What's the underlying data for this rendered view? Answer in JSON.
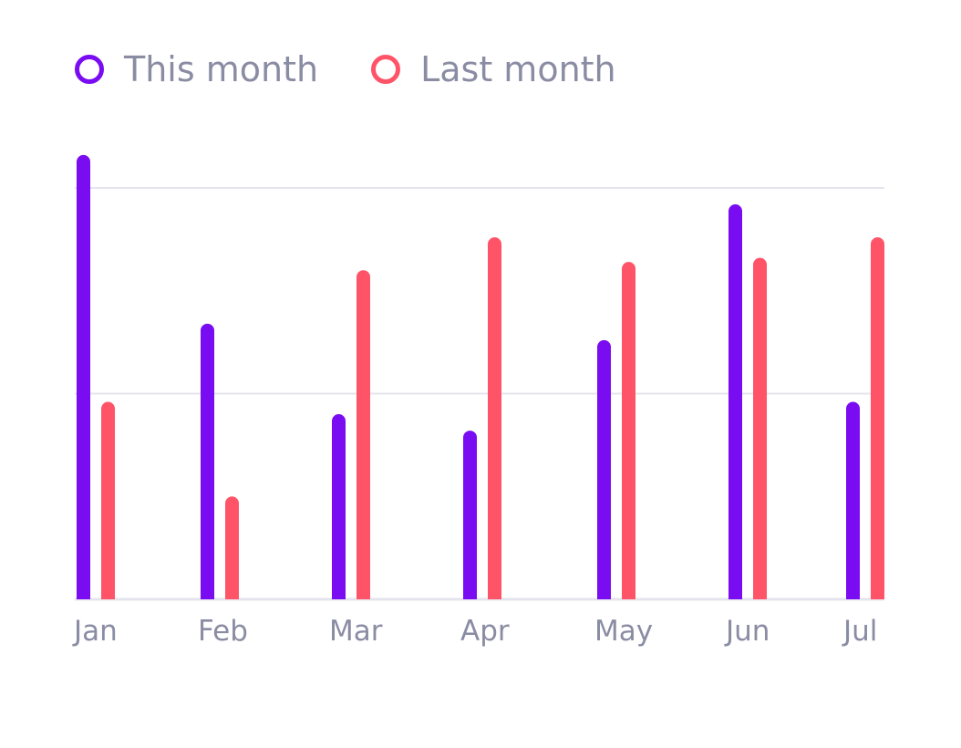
{
  "legend": [
    {
      "label": "This month",
      "color": "#7a0cf2"
    },
    {
      "label": "Last month",
      "color": "#ff5468"
    }
  ],
  "chart_data": {
    "type": "bar",
    "categories": [
      "Jan",
      "Feb",
      "Mar",
      "Apr",
      "May",
      "Jun",
      "Jul"
    ],
    "series": [
      {
        "name": "This month",
        "color": "#7a0cf2",
        "values": [
          108,
          67,
          45,
          41,
          63,
          96,
          48
        ]
      },
      {
        "name": "Last month",
        "color": "#ff5468",
        "values": [
          48,
          25,
          80,
          88,
          82,
          83,
          88
        ]
      }
    ],
    "ylim": [
      0,
      100
    ],
    "gridlines": [
      0,
      50,
      100
    ],
    "grid": true,
    "legend_position": "top-left"
  }
}
